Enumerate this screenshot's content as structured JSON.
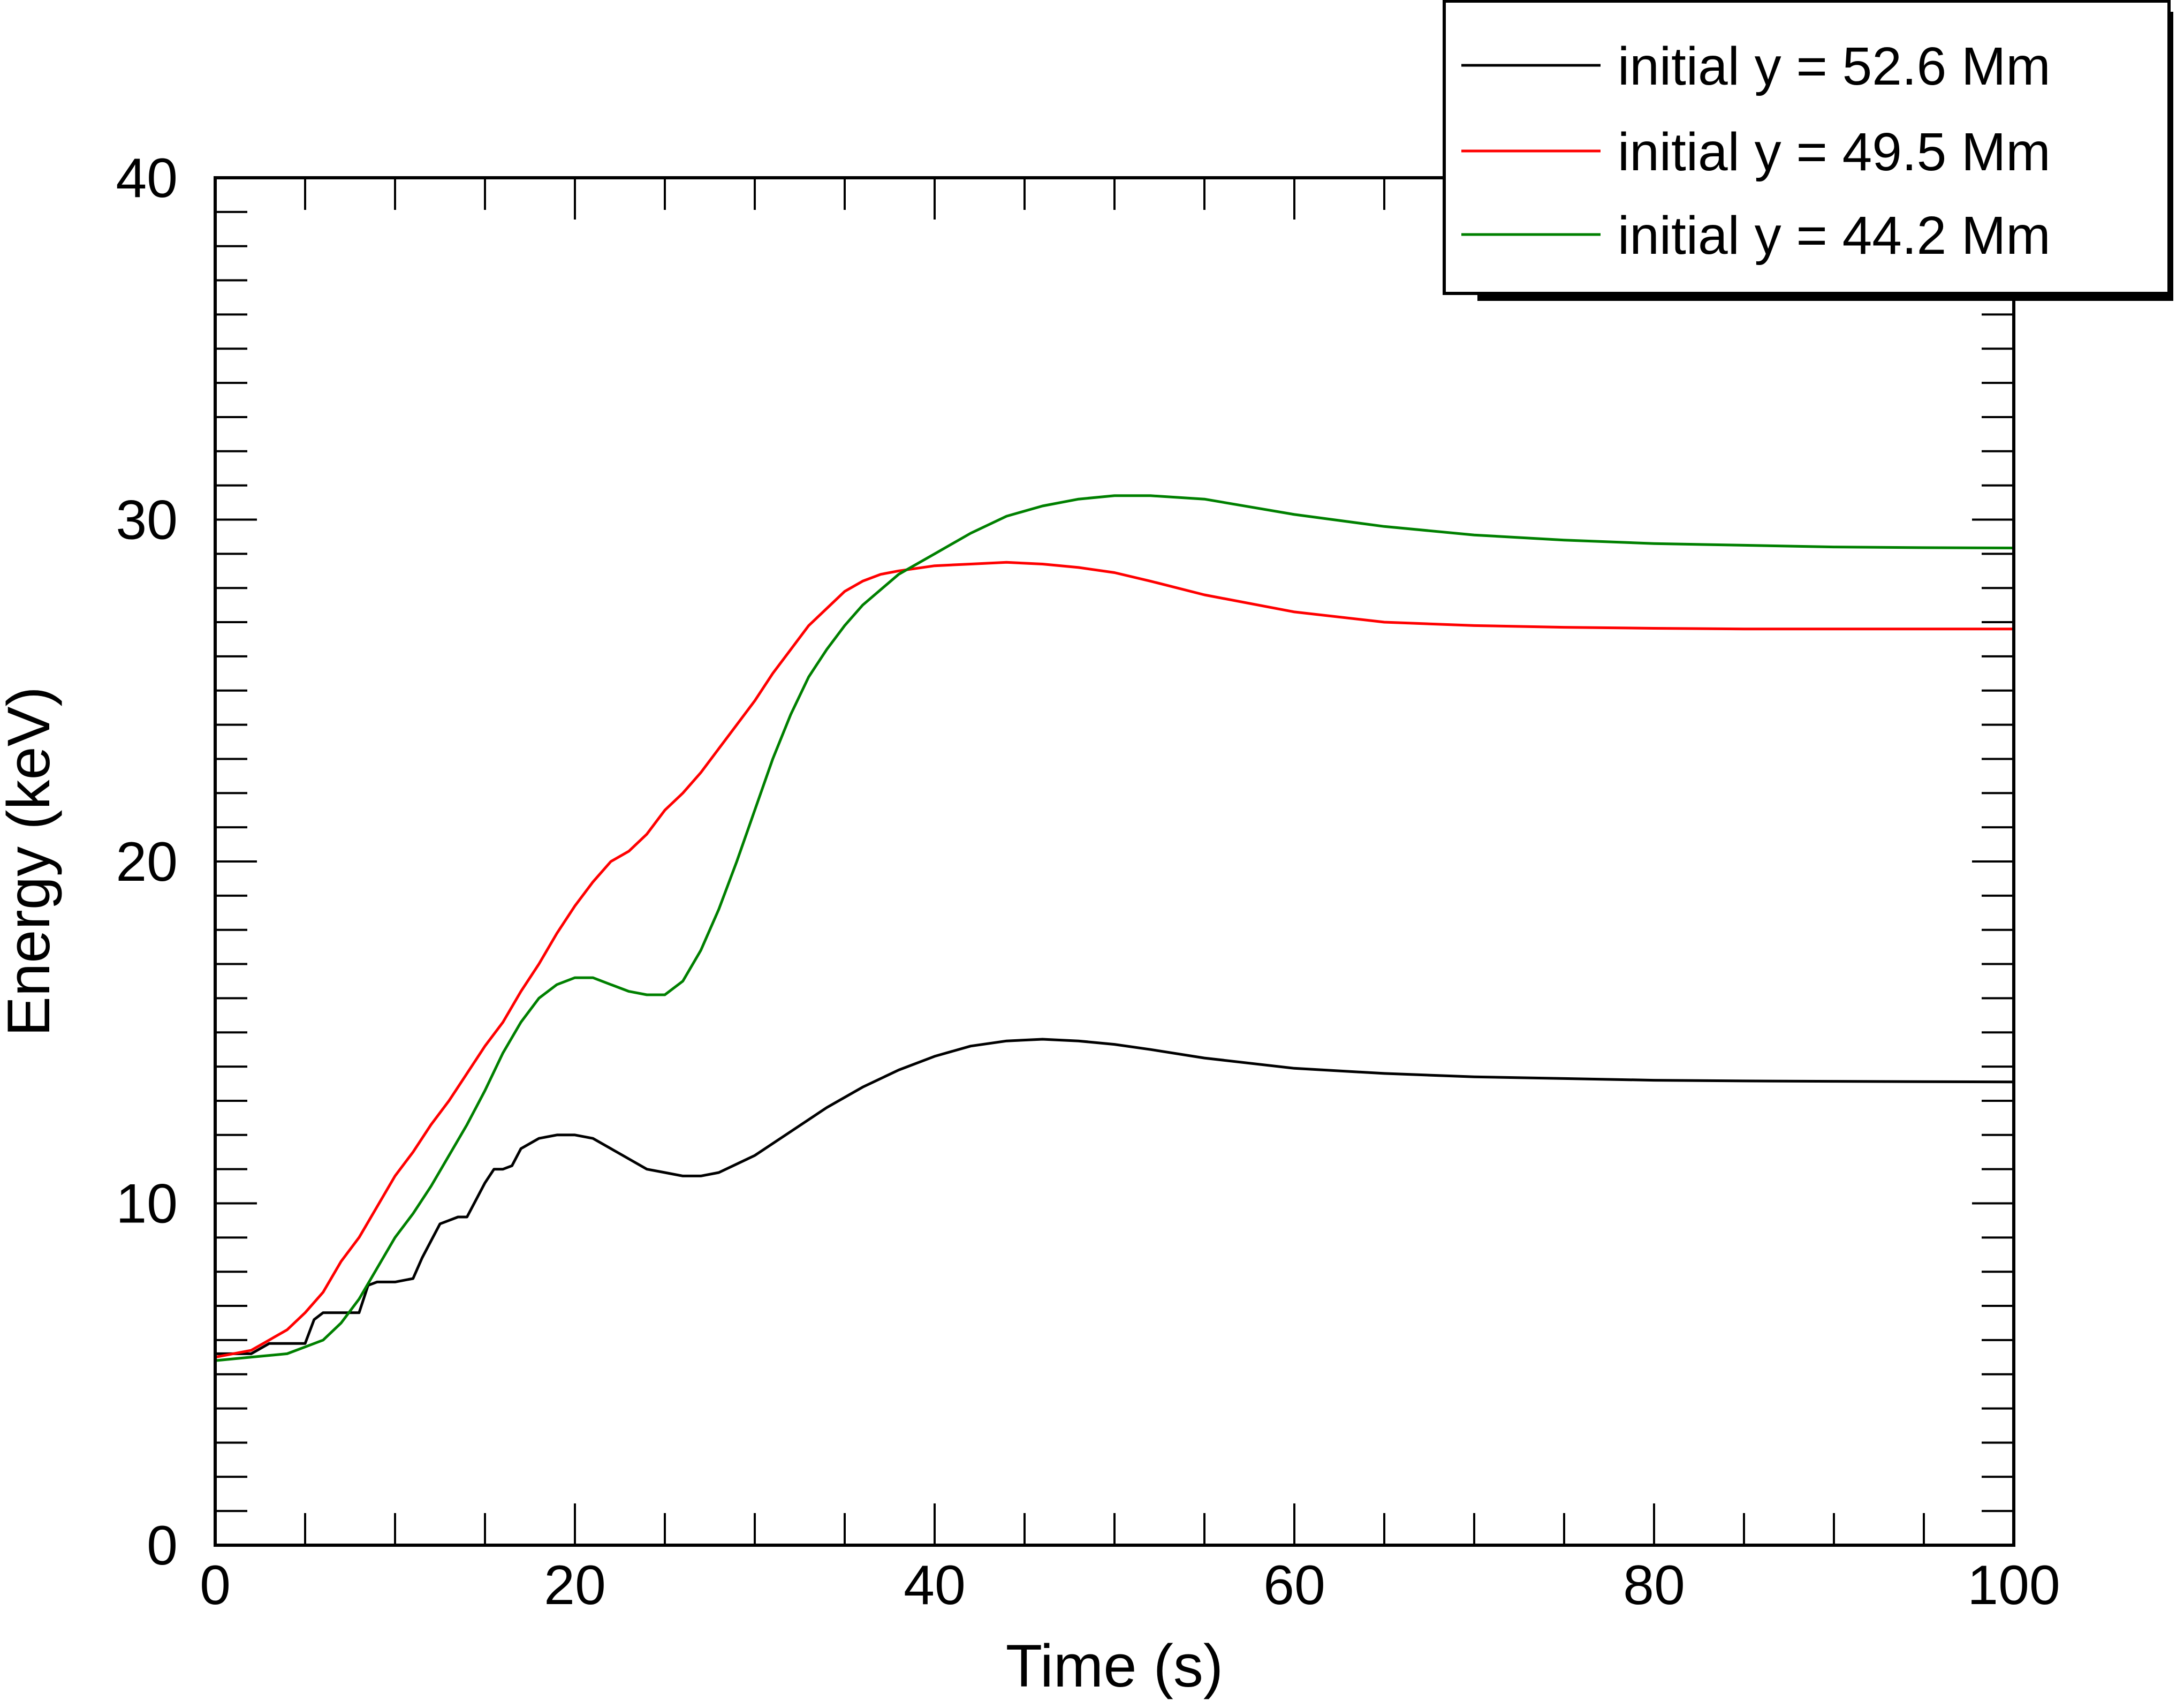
{
  "chart_data": {
    "type": "line",
    "xlabel": "Time (s)",
    "ylabel": "Energy (keV)",
    "xlim": [
      0,
      100
    ],
    "ylim": [
      0,
      40
    ],
    "x_ticks": [
      0,
      20,
      40,
      60,
      80,
      100
    ],
    "y_ticks": [
      0,
      10,
      20,
      30,
      40
    ],
    "x_minor_step": 5,
    "y_minor_step": 1,
    "grid": false,
    "legend_position": "top-right",
    "series": [
      {
        "name": "initial y = 52.6 Mm",
        "color": "#000000",
        "x": [
          0,
          2,
          3,
          4,
          5,
          5.5,
          6,
          7,
          8,
          8.5,
          9,
          10,
          11,
          11.5,
          12,
          12.5,
          13,
          13.5,
          14,
          15,
          15.5,
          16,
          16.5,
          17,
          18,
          19,
          20,
          21,
          22,
          23,
          24,
          25,
          26,
          27,
          28,
          30,
          32,
          34,
          36,
          38,
          40,
          42,
          44,
          46,
          48,
          50,
          52,
          55,
          60,
          65,
          70,
          75,
          80,
          85,
          90,
          95,
          100
        ],
        "y": [
          5.6,
          5.6,
          5.9,
          5.9,
          5.9,
          6.6,
          6.8,
          6.8,
          6.8,
          7.6,
          7.7,
          7.7,
          7.8,
          8.4,
          8.9,
          9.4,
          9.5,
          9.6,
          9.6,
          10.6,
          11.0,
          11.0,
          11.1,
          11.6,
          11.9,
          12.0,
          12.0,
          11.9,
          11.6,
          11.3,
          11.0,
          10.9,
          10.8,
          10.8,
          10.9,
          11.4,
          12.1,
          12.8,
          13.4,
          13.9,
          14.3,
          14.6,
          14.75,
          14.8,
          14.75,
          14.65,
          14.5,
          14.25,
          13.95,
          13.8,
          13.7,
          13.65,
          13.6,
          13.58,
          13.57,
          13.56,
          13.55
        ]
      },
      {
        "name": "initial y = 49.5 Mm",
        "color": "#ff0000",
        "x": [
          0,
          2,
          3,
          4,
          5,
          6,
          7,
          8,
          9,
          10,
          11,
          12,
          13,
          14,
          15,
          16,
          17,
          18,
          19,
          20,
          21,
          22,
          23,
          24,
          25,
          26,
          27,
          28,
          29,
          30,
          31,
          32,
          33,
          34,
          35,
          36,
          37,
          38,
          40,
          42,
          44,
          46,
          48,
          50,
          52,
          55,
          60,
          65,
          70,
          75,
          80,
          85,
          90,
          95,
          100
        ],
        "y": [
          5.5,
          5.7,
          6.0,
          6.3,
          6.8,
          7.4,
          8.3,
          9.0,
          9.9,
          10.8,
          11.5,
          12.3,
          13.0,
          13.8,
          14.6,
          15.3,
          16.2,
          17.0,
          17.9,
          18.7,
          19.4,
          20.0,
          20.3,
          20.8,
          21.5,
          22.0,
          22.6,
          23.3,
          24.0,
          24.7,
          25.5,
          26.2,
          26.9,
          27.4,
          27.9,
          28.2,
          28.4,
          28.5,
          28.65,
          28.7,
          28.75,
          28.7,
          28.6,
          28.45,
          28.2,
          27.8,
          27.3,
          27.0,
          26.9,
          26.85,
          26.82,
          26.8,
          26.8,
          26.8,
          26.8
        ]
      },
      {
        "name": "initial y = 44.2 Mm",
        "color": "#008000",
        "x": [
          0,
          2,
          4,
          5,
          6,
          7,
          8,
          9,
          10,
          11,
          12,
          13,
          14,
          15,
          16,
          17,
          18,
          19,
          20,
          21,
          22,
          23,
          24,
          25,
          26,
          27,
          28,
          29,
          30,
          31,
          32,
          33,
          34,
          35,
          36,
          38,
          40,
          42,
          44,
          46,
          48,
          50,
          52,
          55,
          60,
          65,
          70,
          75,
          80,
          85,
          90,
          95,
          100
        ],
        "y": [
          5.4,
          5.5,
          5.6,
          5.8,
          6.0,
          6.5,
          7.2,
          8.1,
          9.0,
          9.7,
          10.5,
          11.4,
          12.3,
          13.3,
          14.4,
          15.3,
          16.0,
          16.4,
          16.6,
          16.6,
          16.4,
          16.2,
          16.1,
          16.1,
          16.5,
          17.4,
          18.6,
          20.0,
          21.5,
          23.0,
          24.3,
          25.4,
          26.2,
          26.9,
          27.5,
          28.4,
          29.0,
          29.6,
          30.1,
          30.4,
          30.6,
          30.7,
          30.7,
          30.6,
          30.15,
          29.8,
          29.55,
          29.4,
          29.3,
          29.25,
          29.2,
          29.18,
          29.17
        ]
      }
    ]
  }
}
